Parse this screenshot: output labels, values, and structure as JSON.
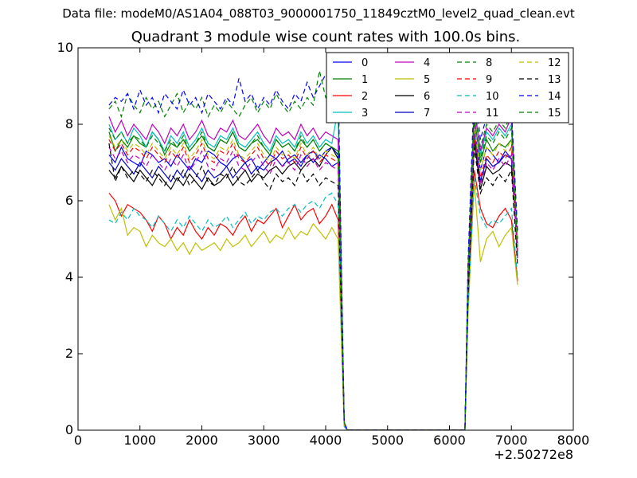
{
  "header": {
    "suptitle": "Data file: modeM0/AS1A04_088T03_9000001750_11849cztM0_level2_quad_clean.evt"
  },
  "chart_data": {
    "type": "line",
    "title": "Quadrant 3 module wise count rates with 100.0s bins.",
    "xlabel": "",
    "ylabel": "",
    "x_offset_label": "+2.50272e8",
    "xlim": [
      0,
      8000
    ],
    "ylim": [
      0,
      10
    ],
    "xticks": [
      0,
      1000,
      2000,
      3000,
      4000,
      5000,
      6000,
      7000,
      8000
    ],
    "yticks": [
      0,
      2,
      4,
      6,
      8,
      10
    ],
    "grid": false,
    "legend_position": "top-right",
    "legend_columns": 4,
    "x_segments": [
      [
        500,
        4200,
        100
      ],
      [
        4300,
        4350,
        50
      ],
      [
        6250,
        6250,
        1
      ],
      [
        6300,
        7100,
        100
      ]
    ],
    "series": [
      {
        "name": "0",
        "color": "#0000ff",
        "dash": false,
        "base": [
          7.2,
          7.0,
          7.4,
          7.1,
          7.0,
          6.9,
          7.3,
          7.2,
          7.0,
          7.1,
          6.9,
          7.2,
          7.0,
          6.8,
          7.1,
          7.0,
          7.3,
          7.2,
          7.0,
          6.9,
          7.1,
          7.2,
          7.0,
          7.1,
          6.8,
          7.0,
          7.2,
          7.1,
          7.3,
          7.0,
          7.1,
          6.9,
          7.2,
          7.0,
          7.2,
          7.1,
          6.9,
          7.0
        ],
        "tail": [
          0.2,
          0,
          0,
          3.8,
          7.9,
          6.8,
          7.4,
          7.2,
          7.0,
          7.3,
          7.1,
          4.6
        ]
      },
      {
        "name": "1",
        "color": "#008000",
        "dash": false,
        "base": [
          7.8,
          7.3,
          7.6,
          7.4,
          7.7,
          7.5,
          7.4,
          7.8,
          7.6,
          7.2,
          7.5,
          7.4,
          7.6,
          7.3,
          7.5,
          7.7,
          7.4,
          7.3,
          7.6,
          7.5,
          7.8,
          7.4,
          7.3,
          7.5,
          7.6,
          7.4,
          7.2,
          7.6,
          7.4,
          7.5,
          7.3,
          7.6,
          7.4,
          7.6,
          7.3,
          7.5,
          7.4,
          7.3
        ],
        "tail": [
          0.2,
          0,
          0,
          3.9,
          8.2,
          7.0,
          7.6,
          7.3,
          7.5,
          7.4,
          7.6,
          4.5
        ]
      },
      {
        "name": "2",
        "color": "#ff0000",
        "dash": false,
        "base": [
          6.2,
          6.0,
          5.6,
          5.9,
          5.8,
          5.7,
          5.5,
          5.2,
          5.6,
          5.4,
          5.0,
          5.3,
          5.1,
          5.5,
          5.2,
          5.0,
          5.3,
          5.1,
          5.4,
          5.3,
          5.1,
          5.4,
          5.6,
          5.2,
          5.5,
          5.4,
          5.6,
          5.8,
          5.3,
          5.6,
          5.9,
          5.5,
          5.7,
          5.8,
          5.4,
          5.6,
          5.9,
          5.5
        ],
        "tail": [
          0.1,
          0,
          0,
          3.3,
          6.8,
          5.8,
          5.4,
          5.3,
          5.6,
          5.8,
          5.5,
          3.9
        ]
      },
      {
        "name": "3",
        "color": "#00bfbf",
        "dash": false,
        "base": [
          8.0,
          7.6,
          7.8,
          7.5,
          7.9,
          7.7,
          7.4,
          7.8,
          7.6,
          7.3,
          7.7,
          7.5,
          7.8,
          7.4,
          7.6,
          7.9,
          7.5,
          7.4,
          7.7,
          7.6,
          7.9,
          7.5,
          7.4,
          7.6,
          7.8,
          7.5,
          7.3,
          7.7,
          7.5,
          7.6,
          7.4,
          7.8,
          7.5,
          7.7,
          7.4,
          7.6,
          7.5,
          8.4
        ],
        "tail": [
          0.2,
          0,
          0,
          4.0,
          8.6,
          7.2,
          7.8,
          7.6,
          7.9,
          7.7,
          8.0,
          4.6
        ]
      },
      {
        "name": "4",
        "color": "#bf00bf",
        "dash": false,
        "base": [
          8.2,
          7.8,
          8.1,
          7.7,
          8.0,
          7.8,
          7.6,
          8.0,
          7.8,
          7.5,
          7.9,
          7.7,
          8.0,
          7.6,
          7.8,
          8.1,
          7.7,
          7.6,
          7.9,
          7.8,
          8.1,
          7.7,
          7.6,
          7.8,
          8.0,
          7.7,
          7.5,
          7.9,
          7.7,
          7.8,
          7.6,
          8.0,
          7.7,
          7.9,
          7.6,
          7.8,
          7.7,
          7.6
        ],
        "tail": [
          0.2,
          0,
          0,
          4.1,
          8.4,
          7.3,
          7.9,
          7.7,
          8.0,
          7.8,
          8.2,
          4.7
        ]
      },
      {
        "name": "5",
        "color": "#bfbf00",
        "dash": false,
        "base": [
          5.9,
          5.5,
          5.8,
          5.1,
          5.3,
          5.2,
          4.8,
          5.1,
          4.9,
          4.8,
          5.0,
          4.7,
          4.9,
          4.6,
          4.9,
          4.7,
          4.8,
          4.9,
          4.7,
          5.0,
          4.8,
          4.9,
          5.1,
          4.8,
          5.0,
          5.2,
          4.9,
          5.1,
          5.0,
          5.3,
          5.0,
          5.2,
          5.1,
          5.4,
          5.2,
          5.0,
          5.3,
          5.0
        ],
        "tail": [
          0.1,
          0,
          0,
          3.0,
          6.5,
          4.4,
          5.0,
          5.2,
          4.8,
          5.1,
          5.3,
          3.8
        ]
      },
      {
        "name": "6",
        "color": "#000000",
        "dash": false,
        "base": [
          6.8,
          6.6,
          6.9,
          6.7,
          6.5,
          6.8,
          6.6,
          6.4,
          6.7,
          6.5,
          6.3,
          6.6,
          6.4,
          6.7,
          6.5,
          6.3,
          6.6,
          6.4,
          6.5,
          6.7,
          6.4,
          6.6,
          6.8,
          6.5,
          6.7,
          6.6,
          6.8,
          6.9,
          6.7,
          6.9,
          7.0,
          6.8,
          7.0,
          7.1,
          6.9,
          7.2,
          7.4,
          7.1
        ],
        "tail": [
          0.2,
          0,
          0,
          3.6,
          7.6,
          6.3,
          6.9,
          6.7,
          6.8,
          7.0,
          6.9,
          4.8
        ]
      },
      {
        "name": "7",
        "color": "#0000cc",
        "dash": false,
        "base": [
          7.0,
          6.8,
          7.1,
          6.9,
          6.7,
          7.0,
          6.8,
          6.6,
          6.9,
          6.7,
          6.5,
          6.8,
          6.6,
          6.9,
          6.7,
          6.5,
          6.8,
          6.6,
          6.7,
          6.9,
          6.6,
          6.8,
          7.0,
          6.7,
          6.9,
          6.8,
          7.0,
          7.1,
          6.9,
          7.1,
          7.2,
          7.0,
          7.2,
          7.3,
          7.1,
          7.3,
          7.4,
          7.2
        ],
        "tail": [
          0.2,
          0,
          0,
          3.7,
          7.8,
          6.5,
          7.1,
          6.9,
          7.0,
          7.2,
          7.1,
          4.8
        ]
      },
      {
        "name": "8",
        "color": "#008000",
        "dash": true,
        "base": [
          8.4,
          8.6,
          8.2,
          8.8,
          8.5,
          8.3,
          8.7,
          8.4,
          8.6,
          8.2,
          8.5,
          8.8,
          8.3,
          8.6,
          8.4,
          8.7,
          8.2,
          8.5,
          8.3,
          8.6,
          8.4,
          8.2,
          8.5,
          8.7,
          8.3,
          8.6,
          8.4,
          8.8,
          8.5,
          8.3,
          8.6,
          8.4,
          8.7,
          8.5,
          9.4,
          8.7,
          8.5,
          8.8
        ],
        "tail": [
          0.2,
          0,
          0,
          4.2,
          8.5,
          7.4,
          8.0,
          7.8,
          8.1,
          7.9,
          8.3,
          5.0
        ]
      },
      {
        "name": "9",
        "color": "#ff0000",
        "dash": true,
        "base": [
          7.6,
          7.3,
          7.5,
          7.2,
          7.4,
          7.3,
          7.1,
          7.4,
          7.2,
          7.0,
          7.3,
          7.1,
          7.4,
          7.0,
          7.2,
          7.5,
          7.1,
          7.0,
          7.3,
          7.2,
          7.5,
          7.1,
          7.0,
          7.2,
          7.4,
          7.1,
          6.9,
          7.3,
          7.1,
          7.2,
          7.0,
          7.4,
          7.1,
          7.3,
          7.0,
          7.2,
          7.1,
          7.0
        ],
        "tail": [
          0.2,
          0,
          0,
          3.8,
          7.7,
          6.6,
          7.2,
          7.0,
          7.3,
          7.1,
          7.4,
          4.6
        ]
      },
      {
        "name": "10",
        "color": "#00bfbf",
        "dash": true,
        "base": [
          5.5,
          5.4,
          5.7,
          5.5,
          5.8,
          5.6,
          5.5,
          5.3,
          5.6,
          5.4,
          5.2,
          5.5,
          5.3,
          5.6,
          5.4,
          5.2,
          5.5,
          5.3,
          5.4,
          5.6,
          5.3,
          5.5,
          5.7,
          5.4,
          5.6,
          5.5,
          5.7,
          5.8,
          5.6,
          5.8,
          5.9,
          5.7,
          5.9,
          6.0,
          5.8,
          6.1,
          6.2,
          5.9
        ],
        "tail": [
          0.1,
          0,
          0,
          3.2,
          6.6,
          5.6,
          5.3,
          5.5,
          5.4,
          5.6,
          5.8,
          4.0
        ]
      },
      {
        "name": "11",
        "color": "#bf00bf",
        "dash": true,
        "base": [
          7.4,
          7.1,
          7.3,
          7.0,
          7.2,
          7.1,
          6.9,
          7.2,
          7.0,
          6.8,
          7.1,
          6.9,
          7.2,
          6.8,
          7.0,
          7.3,
          6.9,
          6.8,
          7.1,
          7.0,
          7.3,
          6.9,
          6.8,
          7.0,
          7.2,
          6.9,
          6.7,
          7.1,
          6.9,
          7.0,
          6.8,
          7.2,
          6.9,
          7.1,
          6.8,
          7.0,
          6.9,
          6.8
        ],
        "tail": [
          0.2,
          0,
          0,
          3.7,
          8.0,
          6.4,
          7.0,
          6.8,
          7.1,
          6.9,
          7.2,
          4.5
        ]
      },
      {
        "name": "12",
        "color": "#bfbf00",
        "dash": true,
        "base": [
          7.7,
          7.4,
          7.6,
          7.3,
          7.5,
          7.4,
          7.2,
          7.5,
          7.3,
          7.1,
          7.4,
          7.2,
          7.5,
          7.1,
          7.3,
          7.6,
          7.2,
          7.1,
          7.4,
          7.3,
          7.6,
          7.2,
          7.1,
          7.3,
          7.5,
          7.2,
          7.0,
          7.4,
          7.2,
          7.3,
          7.1,
          7.5,
          7.2,
          7.4,
          7.1,
          7.3,
          7.2,
          7.1
        ],
        "tail": [
          0.2,
          0,
          0,
          3.9,
          7.9,
          6.8,
          7.4,
          7.2,
          7.5,
          7.3,
          7.6,
          4.7
        ]
      },
      {
        "name": "13",
        "color": "#000000",
        "dash": true,
        "base": [
          7.5,
          6.5,
          6.9,
          6.6,
          6.8,
          6.7,
          6.5,
          6.8,
          6.6,
          6.4,
          6.7,
          6.5,
          6.8,
          6.4,
          6.6,
          6.9,
          6.5,
          6.4,
          6.7,
          6.6,
          6.9,
          6.5,
          6.4,
          6.6,
          6.8,
          6.5,
          6.3,
          6.7,
          6.5,
          6.6,
          6.4,
          6.8,
          6.5,
          6.7,
          6.4,
          6.6,
          6.5,
          6.4
        ],
        "tail": [
          0.2,
          0,
          0,
          3.5,
          7.4,
          6.2,
          6.6,
          6.4,
          6.7,
          6.5,
          6.8,
          4.3
        ]
      },
      {
        "name": "14",
        "color": "#0000ff",
        "dash": true,
        "base": [
          8.5,
          8.7,
          8.6,
          8.8,
          8.4,
          8.9,
          8.5,
          8.7,
          8.3,
          8.8,
          8.6,
          8.4,
          8.9,
          8.5,
          8.7,
          8.3,
          8.8,
          8.6,
          8.4,
          8.7,
          8.5,
          9.2,
          8.6,
          8.8,
          8.4,
          8.7,
          8.5,
          8.9,
          8.6,
          8.4,
          8.8,
          8.6,
          9.1,
          8.7,
          9.0,
          9.3,
          9.0,
          9.3
        ],
        "tail": [
          0.2,
          0,
          0,
          4.4,
          9.0,
          7.6,
          8.2,
          8.0,
          8.3,
          8.1,
          8.4,
          5.2
        ]
      },
      {
        "name": "15",
        "color": "#008000",
        "dash": true,
        "base": [
          7.9,
          7.6,
          7.8,
          7.5,
          7.7,
          7.6,
          7.4,
          7.7,
          7.5,
          7.3,
          7.6,
          7.4,
          7.7,
          7.3,
          7.5,
          7.8,
          7.4,
          7.3,
          7.6,
          7.5,
          7.8,
          7.4,
          7.3,
          7.5,
          7.7,
          7.4,
          7.2,
          7.6,
          7.4,
          7.5,
          7.3,
          7.7,
          7.4,
          7.6,
          7.3,
          7.5,
          7.4,
          7.3
        ],
        "tail": [
          0.2,
          0,
          0,
          4.0,
          8.1,
          7.1,
          7.7,
          7.5,
          7.8,
          7.6,
          7.9,
          4.8
        ]
      }
    ]
  }
}
